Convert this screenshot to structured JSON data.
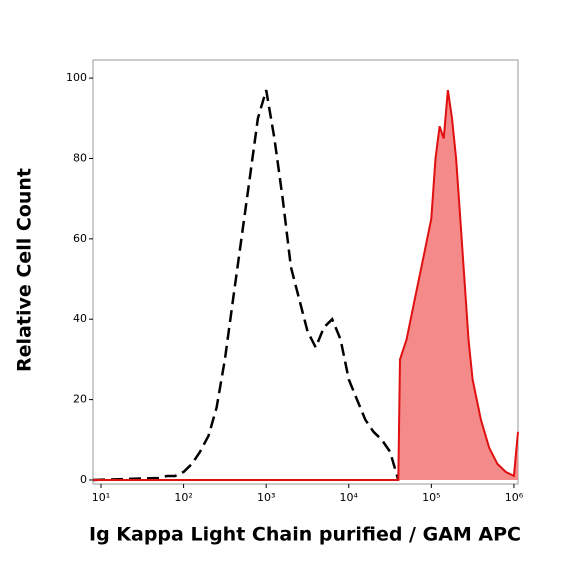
{
  "chart_data": {
    "type": "histogram-overlay",
    "xlabel": "Ig Kappa Light Chain purified / GAM APC",
    "ylabel": "Relative Cell Count",
    "xscale": "log",
    "xlim": [
      8,
      1120000
    ],
    "ylim": [
      -1,
      104.5
    ],
    "xticks": [
      {
        "value": 10,
        "label": "10¹"
      },
      {
        "value": 100,
        "label": "10²"
      },
      {
        "value": 1000,
        "label": "10³"
      },
      {
        "value": 10000,
        "label": "10⁴"
      },
      {
        "value": 100000,
        "label": "10⁵"
      },
      {
        "value": 1000000,
        "label": "10⁶"
      }
    ],
    "yticks": [
      0,
      20,
      40,
      60,
      80,
      100
    ],
    "series": [
      {
        "color": "#000000",
        "line_style": "dashed",
        "filled": false,
        "x": [
          8,
          50,
          63,
          79,
          100,
          126,
          158,
          200,
          251,
          316,
          398,
          501,
          631,
          794,
          1000,
          1259,
          1585,
          1995,
          2512,
          3162,
          3981,
          5012,
          6310,
          7943,
          10000,
          12589,
          15849,
          19953,
          25119,
          31623,
          39811
        ],
        "values": [
          0,
          0.5,
          1,
          1,
          2,
          4,
          7,
          11,
          18,
          30,
          45,
          60,
          75,
          90,
          97,
          85,
          70,
          53,
          45,
          37,
          33,
          38,
          40,
          35,
          25,
          20,
          15,
          12,
          10,
          7,
          0
        ]
      },
      {
        "color": "#e01010",
        "fill": "#f58a8a",
        "line_style": "solid",
        "filled": true,
        "x": [
          8,
          39811,
          41687,
          50119,
          63096,
          79433,
          100000,
          112202,
          125893,
          141254,
          158489,
          177828,
          199526,
          223872,
          251189,
          281838,
          316228,
          398107,
          501187,
          630957,
          794328,
          1000000,
          1120000
        ],
        "values": [
          0,
          0,
          30,
          35,
          45,
          55,
          65,
          80,
          88,
          85,
          97,
          90,
          80,
          65,
          50,
          35,
          25,
          15,
          8,
          4,
          2,
          1,
          12
        ]
      }
    ]
  }
}
